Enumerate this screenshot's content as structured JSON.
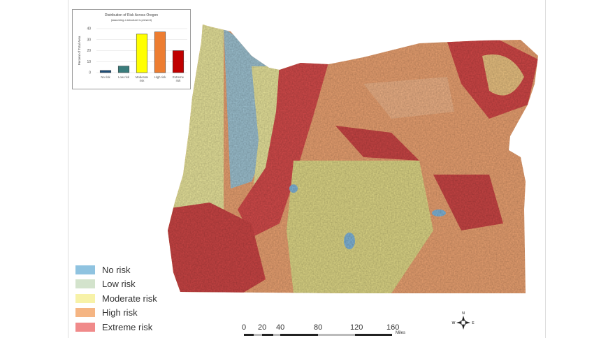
{
  "legend": {
    "items": [
      {
        "label": "No risk",
        "color": "#8fc3e0"
      },
      {
        "label": "Low risk",
        "color": "#d3e3cc"
      },
      {
        "label": "Moderate risk",
        "color": "#f7f2a8"
      },
      {
        "label": "High risk",
        "color": "#f5b583"
      },
      {
        "label": "Extreme risk",
        "color": "#f08a8a"
      }
    ]
  },
  "scale": {
    "ticks": [
      "0",
      "20",
      "40",
      "80",
      "120",
      "160"
    ],
    "unit": "Miles"
  },
  "compass": {
    "n": "N",
    "s": "S",
    "e": "E",
    "w": "W"
  },
  "chart_data": {
    "type": "bar",
    "title": "Distribution of Risk Across Oregon",
    "subtitle": "(assuming a structure is present)",
    "ylabel": "Percent of Total Area",
    "xlabel": "",
    "ylim": [
      0,
      40
    ],
    "yticks": [
      "0",
      "10",
      "20",
      "30",
      "40"
    ],
    "categories": [
      "No risk",
      "Low risk",
      "Moderate risk",
      "High risk",
      "Extreme risk"
    ],
    "values": [
      2,
      6,
      35,
      37,
      20
    ],
    "colors": [
      "#1f4e79",
      "#3a7d7c",
      "#ffff00",
      "#ed7d31",
      "#c00000"
    ],
    "grid": true
  }
}
